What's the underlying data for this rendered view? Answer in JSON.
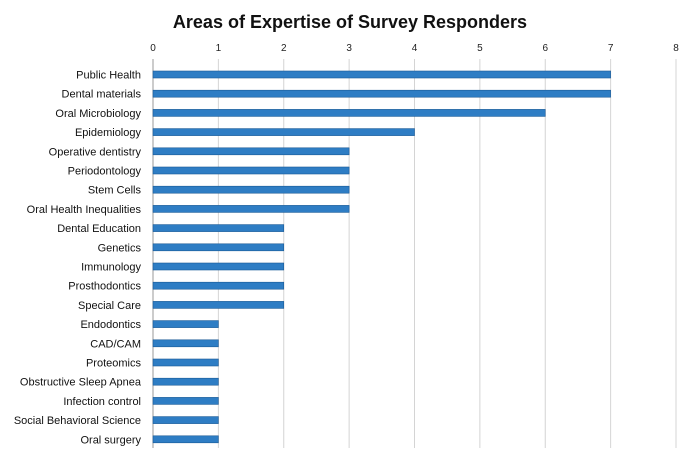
{
  "chart_data": {
    "type": "bar",
    "orientation": "horizontal",
    "title": "Areas of Expertise of Survey Responders",
    "xlabel": "",
    "ylabel": "",
    "xlim": [
      0,
      8
    ],
    "x_ticks": [
      "0",
      "1",
      "2",
      "3",
      "4",
      "5",
      "6",
      "7",
      "8"
    ],
    "x_axis_position": "top",
    "grid": "vertical",
    "legend": "none",
    "categories": [
      "Public Health",
      "Dental materials",
      "Oral Microbiology",
      "Epidemiology",
      "Operative dentistry",
      "Periodontology",
      "Stem Cells",
      "Oral Health Inequalities",
      "Dental Education",
      "Genetics",
      "Immunology",
      "Prosthodontics",
      "Special Care",
      "Endodontics",
      "CAD/CAM",
      "Proteomics",
      "Obstructive Sleep Apnea",
      "Infection control",
      "Social Behavioral Science",
      "Oral surgery"
    ],
    "values": [
      7,
      7,
      6,
      4,
      3,
      3,
      3,
      3,
      2,
      2,
      2,
      2,
      2,
      1,
      1,
      1,
      1,
      1,
      1,
      1
    ],
    "colors": {
      "bar": "#2e7dc4",
      "bar_edge": "#1b5a96",
      "grid": "#d4d4d4",
      "axis": "#9a9a9a"
    }
  }
}
